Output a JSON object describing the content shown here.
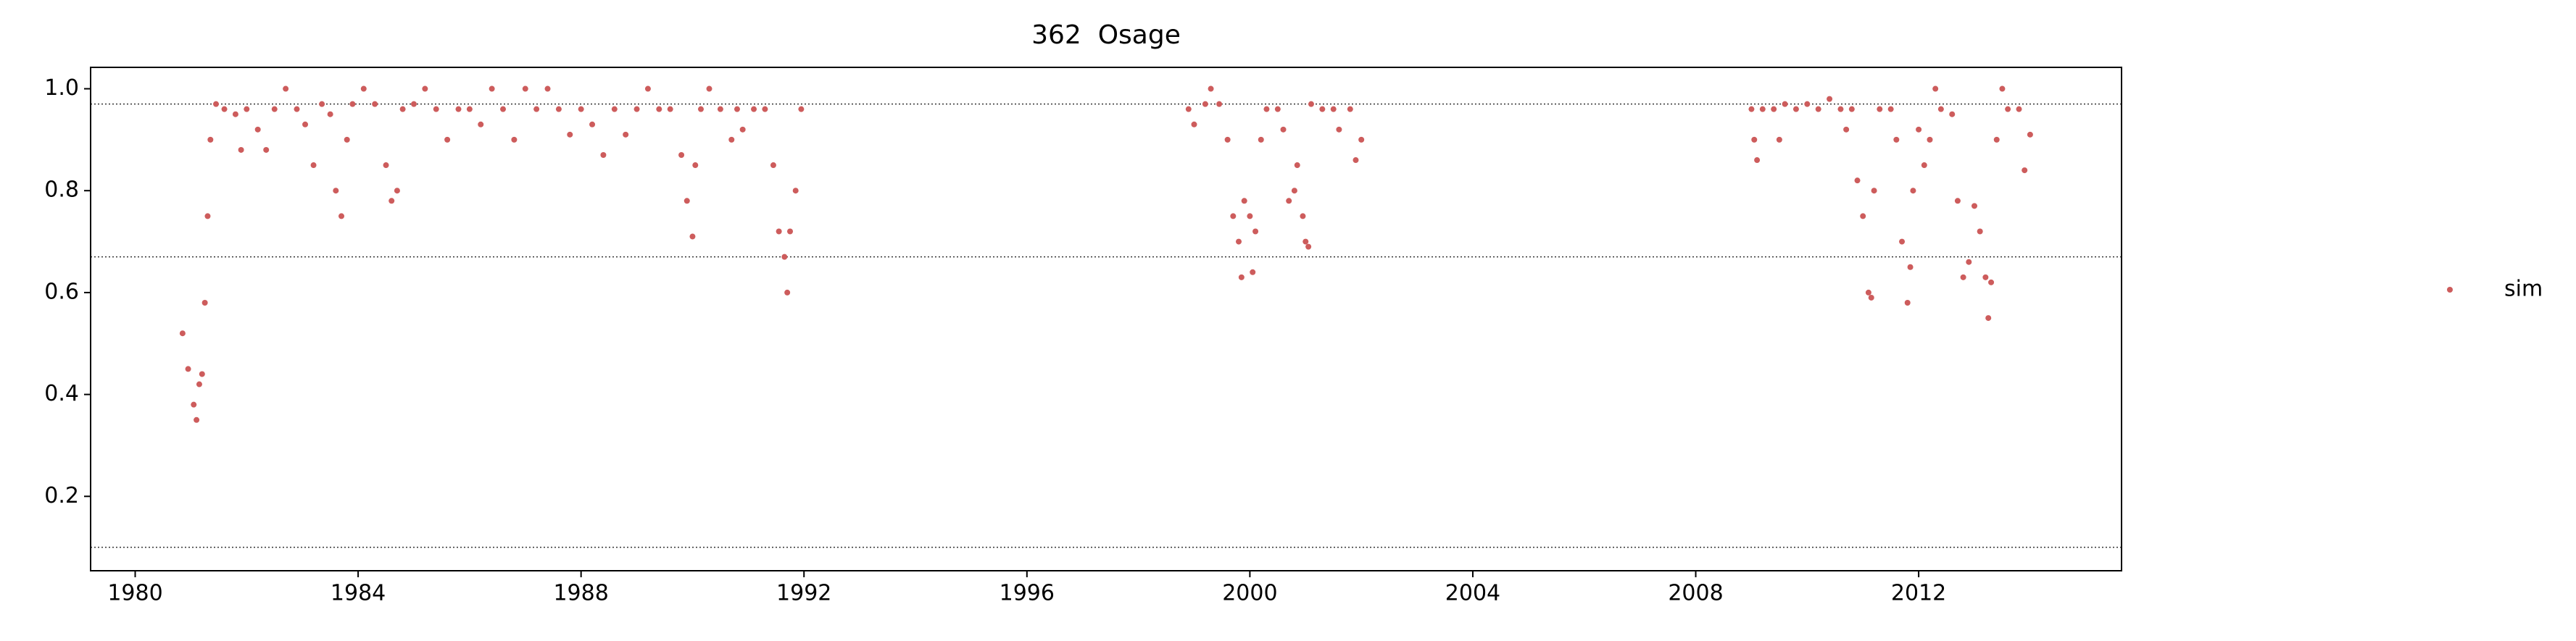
{
  "chart_data": {
    "type": "scatter",
    "title": "362  Osage",
    "series": [
      {
        "name": "sim",
        "color": "#cd5c5c",
        "x": [
          1980.85,
          1980.95,
          1981.05,
          1981.1,
          1981.15,
          1981.2,
          1981.25,
          1981.3,
          1981.35,
          1981.45,
          1981.6,
          1981.8,
          1981.9,
          1982.0,
          1982.2,
          1982.35,
          1982.5,
          1982.7,
          1982.9,
          1983.05,
          1983.2,
          1983.35,
          1983.5,
          1983.6,
          1983.7,
          1983.8,
          1983.9,
          1984.1,
          1984.3,
          1984.5,
          1984.6,
          1984.7,
          1984.8,
          1985.0,
          1985.2,
          1985.4,
          1985.6,
          1985.8,
          1986.0,
          1986.2,
          1986.4,
          1986.6,
          1986.8,
          1987.0,
          1987.2,
          1987.4,
          1987.6,
          1987.8,
          1988.0,
          1988.2,
          1988.4,
          1988.6,
          1988.8,
          1989.0,
          1989.2,
          1989.4,
          1989.6,
          1989.8,
          1989.9,
          1990.0,
          1990.05,
          1990.15,
          1990.3,
          1990.5,
          1990.7,
          1990.8,
          1990.9,
          1991.1,
          1991.3,
          1991.45,
          1991.55,
          1991.65,
          1991.7,
          1991.75,
          1991.85,
          1991.95,
          1998.9,
          1999.0,
          1999.2,
          1999.3,
          1999.45,
          1999.6,
          1999.7,
          1999.8,
          1999.85,
          1999.9,
          2000.0,
          2000.05,
          2000.1,
          2000.2,
          2000.3,
          2000.5,
          2000.6,
          2000.7,
          2000.8,
          2000.85,
          2000.95,
          2001.0,
          2001.05,
          2001.1,
          2001.3,
          2001.5,
          2001.6,
          2001.8,
          2001.9,
          2002.0,
          2009.0,
          2009.05,
          2009.1,
          2009.2,
          2009.4,
          2009.5,
          2009.6,
          2009.8,
          2010.0,
          2010.2,
          2010.4,
          2010.6,
          2010.7,
          2010.8,
          2010.9,
          2011.0,
          2011.1,
          2011.15,
          2011.2,
          2011.3,
          2011.5,
          2011.6,
          2011.7,
          2011.8,
          2011.85,
          2011.9,
          2012.0,
          2012.1,
          2012.2,
          2012.3,
          2012.4,
          2012.6,
          2012.7,
          2012.8,
          2012.9,
          2013.0,
          2013.1,
          2013.2,
          2013.25,
          2013.3,
          2013.4,
          2013.5,
          2013.6,
          2013.8,
          2013.9,
          2014.0
        ],
        "values": [
          0.52,
          0.45,
          0.38,
          0.35,
          0.42,
          0.44,
          0.58,
          0.75,
          0.9,
          0.97,
          0.96,
          0.95,
          0.88,
          0.96,
          0.92,
          0.88,
          0.96,
          1.0,
          0.96,
          0.93,
          0.85,
          0.97,
          0.95,
          0.8,
          0.75,
          0.9,
          0.97,
          1.0,
          0.97,
          0.85,
          0.78,
          0.8,
          0.96,
          0.97,
          1.0,
          0.96,
          0.9,
          0.96,
          0.96,
          0.93,
          1.0,
          0.96,
          0.9,
          1.0,
          0.96,
          1.0,
          0.96,
          0.91,
          0.96,
          0.93,
          0.87,
          0.96,
          0.91,
          0.96,
          1.0,
          0.96,
          0.96,
          0.87,
          0.78,
          0.71,
          0.85,
          0.96,
          1.0,
          0.96,
          0.9,
          0.96,
          0.92,
          0.96,
          0.96,
          0.85,
          0.72,
          0.67,
          0.6,
          0.72,
          0.8,
          0.96,
          0.96,
          0.93,
          0.97,
          1.0,
          0.97,
          0.9,
          0.75,
          0.7,
          0.63,
          0.78,
          0.75,
          0.64,
          0.72,
          0.9,
          0.96,
          0.96,
          0.92,
          0.78,
          0.8,
          0.85,
          0.75,
          0.7,
          0.69,
          0.97,
          0.96,
          0.96,
          0.92,
          0.96,
          0.86,
          0.9,
          0.96,
          0.9,
          0.86,
          0.96,
          0.96,
          0.9,
          0.97,
          0.96,
          0.97,
          0.96,
          0.98,
          0.96,
          0.92,
          0.96,
          0.82,
          0.75,
          0.6,
          0.59,
          0.8,
          0.96,
          0.96,
          0.9,
          0.7,
          0.58,
          0.65,
          0.8,
          0.92,
          0.85,
          0.9,
          1.0,
          0.96,
          0.95,
          0.78,
          0.63,
          0.66,
          0.77,
          0.72,
          0.63,
          0.55,
          0.62,
          0.9,
          1.0,
          0.96,
          0.96,
          0.84,
          0.91
        ]
      }
    ],
    "hlines": [
      0.97,
      0.67,
      0.1
    ],
    "xlim": [
      1979.2,
      2015.64
    ],
    "ylim": [
      0.054,
      1.042
    ],
    "xticks": [
      1980,
      1984,
      1988,
      1992,
      1996,
      2000,
      2004,
      2008,
      2012
    ],
    "yticks": [
      0.2,
      0.4,
      0.6,
      0.8,
      {
        "value": 1.0,
        "label": "1.0"
      }
    ],
    "legend": "right"
  }
}
